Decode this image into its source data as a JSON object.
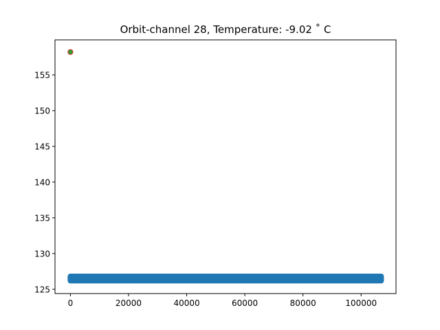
{
  "chart_data": {
    "type": "scatter",
    "title": "Orbit-channel 28, Temperature: -9.02 $^\\circ$ C",
    "title_display": "Orbit-channel 28, Temperature: -9.02  ˚ C",
    "xlabel": "",
    "ylabel": "",
    "xlim": [
      -5300,
      112000
    ],
    "ylim": [
      124.4,
      159.9
    ],
    "x_ticks": [
      0,
      20000,
      40000,
      60000,
      80000,
      100000
    ],
    "x_tick_labels": [
      "0",
      "20000",
      "40000",
      "60000",
      "80000",
      "100000"
    ],
    "y_ticks": [
      125,
      130,
      135,
      140,
      145,
      150,
      155
    ],
    "y_tick_labels": [
      "125",
      "130",
      "135",
      "140",
      "145",
      "150",
      "155"
    ],
    "grid": false,
    "legend": "none",
    "series": [
      {
        "marker": "dense-band",
        "color": "#1f77b4",
        "x_range": [
          0,
          106900
        ],
        "y_range": [
          126.2,
          126.8
        ]
      },
      {
        "marker": "circle",
        "color": "#2ca02c",
        "edgecolor": "#d62728",
        "points": [
          {
            "x": 0,
            "y": 158.2
          }
        ]
      }
    ]
  }
}
